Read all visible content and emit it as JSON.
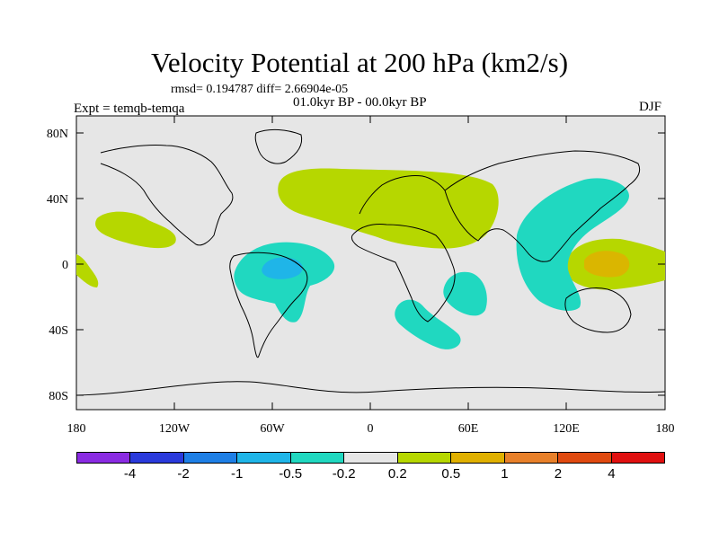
{
  "title": "Velocity Potential at 200 hPa (km2/s)",
  "stats_line": "rmsd= 0.194787 diff= 2.66904e-05",
  "period_line": "01.0kyr BP - 00.0kyr BP",
  "expt_label": "Expt = temqb-temqa",
  "season": "DJF",
  "lat_ticks": [
    "80N",
    "40N",
    "0",
    "40S",
    "80S"
  ],
  "lon_ticks": [
    "180",
    "120W",
    "60W",
    "0",
    "60E",
    "120E",
    "180"
  ],
  "colorbar": {
    "colors": [
      "#8a2be2",
      "#2a3adb",
      "#1e7fe6",
      "#1fb5e8",
      "#20d8c0",
      "#e6e6e6",
      "#b6d700",
      "#e0b000",
      "#e8802a",
      "#e04a10",
      "#e01010"
    ],
    "labels": [
      "-4",
      "-2",
      "-1",
      "-0.5",
      "-0.2",
      "0.2",
      "0.5",
      "1",
      "2",
      "4"
    ]
  },
  "field_colors": {
    "background": "#e6e6e6",
    "positive_0_2": "#b6d700",
    "positive_0_5": "#e0b000",
    "negative_0_2": "#20d8c0",
    "negative_0_5": "#1fb5e8"
  }
}
